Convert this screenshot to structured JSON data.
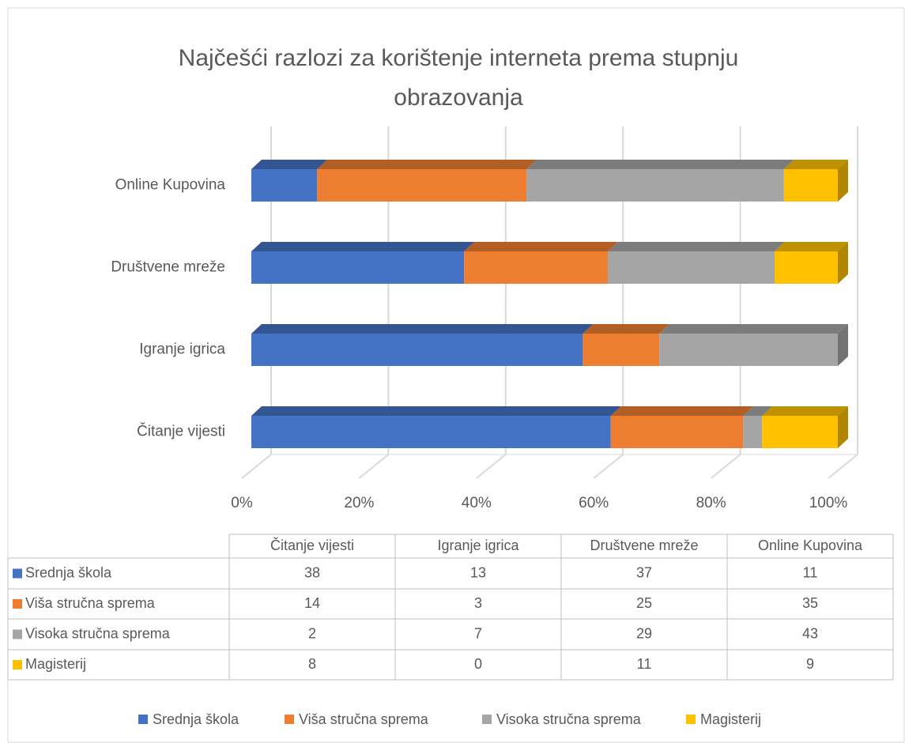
{
  "chart_data": {
    "type": "bar",
    "orientation": "horizontal",
    "stacked": "percent",
    "title": "Najčešći razlozi za korištenje interneta prema stupnju obrazovanja",
    "categories": [
      "Čitanje vijesti",
      "Igranje igrica",
      "Društvene mreže",
      "Online Kupovina"
    ],
    "series": [
      {
        "name": "Srednja škola",
        "color": "#4472c4",
        "values": [
          38,
          13,
          37,
          11
        ]
      },
      {
        "name": "Viša stručna sprema",
        "color": "#ed7d31",
        "values": [
          14,
          3,
          25,
          35
        ]
      },
      {
        "name": "Visoka stručna sprema",
        "color": "#a5a5a5",
        "values": [
          2,
          7,
          29,
          43
        ]
      },
      {
        "name": "Magisterij",
        "color": "#ffc000",
        "values": [
          8,
          0,
          11,
          9
        ]
      }
    ],
    "xlim": [
      0,
      100
    ],
    "xticks": [
      {
        "value": 0,
        "label": "0%"
      },
      {
        "value": 20,
        "label": "20%"
      },
      {
        "value": 40,
        "label": "40%"
      },
      {
        "value": 60,
        "label": "60%"
      },
      {
        "value": 80,
        "label": "80%"
      },
      {
        "value": 100,
        "label": "100%"
      }
    ],
    "grid": true,
    "data_table": true,
    "legend": "bottom"
  }
}
